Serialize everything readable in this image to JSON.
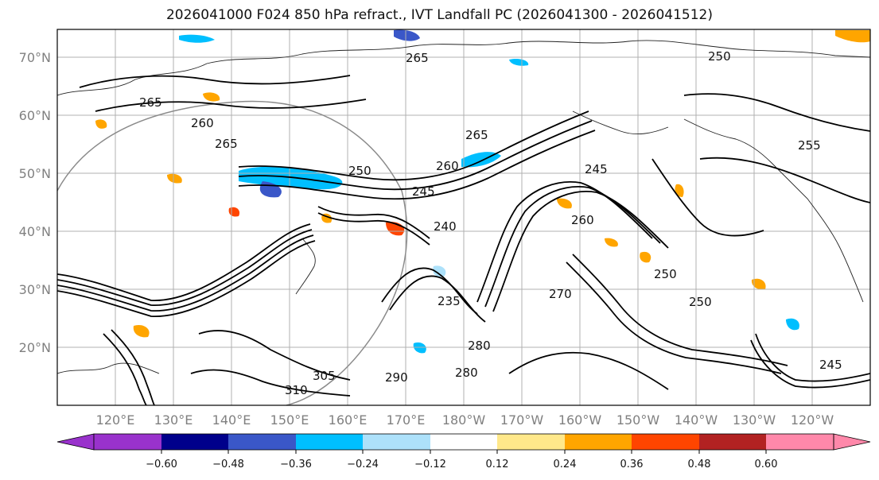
{
  "title": "2026041000 F024 850 hPa refract., IVT Landfall PC (2026041300 - 2026041512)",
  "map": {
    "lat_ticks": [
      "70°N",
      "60°N",
      "50°N",
      "40°N",
      "30°N",
      "20°N"
    ],
    "lat_values": [
      70,
      60,
      50,
      40,
      30,
      20
    ],
    "lat_range": [
      10,
      75
    ],
    "lon_ticks": [
      "120°E",
      "130°E",
      "140°E",
      "150°E",
      "160°E",
      "170°E",
      "180°W",
      "170°W",
      "160°W",
      "150°W",
      "140°W",
      "130°W",
      "120°W"
    ],
    "lon_values": [
      120,
      130,
      140,
      150,
      160,
      170,
      180,
      190,
      200,
      210,
      220,
      230,
      240
    ],
    "lon_range": [
      110,
      250
    ],
    "contour_labels": [
      "265",
      "260",
      "265",
      "265",
      "250",
      "245",
      "260",
      "245",
      "240",
      "255",
      "250",
      "260",
      "270",
      "250",
      "235",
      "280",
      "280",
      "290",
      "305",
      "310",
      "245",
      "265",
      "250"
    ]
  },
  "colorbar": {
    "colors": [
      "#9932CC",
      "#00008B",
      "#3A57C8",
      "#00BFFF",
      "#ADE1FA",
      "#FFFFFF",
      "#FFE88A",
      "#FFA500",
      "#FF4500",
      "#B22222",
      "#FF88AA"
    ],
    "tick_labels": [
      "−0.60",
      "−0.48",
      "−0.36",
      "−0.24",
      "−0.12",
      "0.12",
      "0.24",
      "0.36",
      "0.48",
      "0.60"
    ],
    "tick_values": [
      -0.6,
      -0.48,
      -0.36,
      -0.24,
      -0.12,
      0.12,
      0.24,
      0.36,
      0.48,
      0.6
    ]
  }
}
